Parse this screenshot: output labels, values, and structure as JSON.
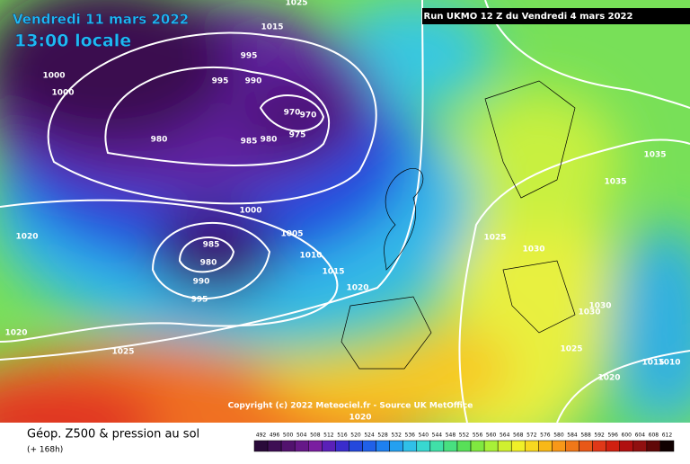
{
  "header": {
    "title": "Vendredi 11 mars 2022",
    "subtitle": "13:00 locale",
    "run": "Run UKMO 12 Z du Vendredi 4 mars 2022"
  },
  "copyright": "Copyright (c) 2022 Meteociel.fr - Source UK MetOffice",
  "footer": {
    "title": "Géop. Z500 & pression au sol",
    "lead": "(+ 168h)"
  },
  "isobar_labels": [
    "1025",
    "1015",
    "995",
    "995",
    "990",
    "1000",
    "1000",
    "970",
    "970",
    "980",
    "985",
    "980",
    "975",
    "1000",
    "985",
    "980",
    "990",
    "995",
    "1005",
    "1010",
    "1015",
    "1020",
    "1020",
    "1020",
    "1025",
    "1025",
    "1030",
    "1035",
    "1035",
    "1030",
    "1030",
    "1025",
    "1015",
    "1010",
    "1020",
    "1020"
  ],
  "legend": {
    "labels": [
      "492",
      "496",
      "500",
      "504",
      "508",
      "512",
      "516",
      "520",
      "524",
      "528",
      "532",
      "536",
      "540",
      "544",
      "548",
      "552",
      "556",
      "560",
      "564",
      "568",
      "572",
      "576",
      "580",
      "584",
      "588",
      "592",
      "596",
      "600",
      "604",
      "608",
      "612"
    ],
    "colors": [
      "#2a0a3a",
      "#3e0e54",
      "#52126e",
      "#661888",
      "#7a1ea0",
      "#5a20b8",
      "#3a2ccc",
      "#2448dc",
      "#2060e8",
      "#1e80f0",
      "#24a0f0",
      "#30c0e8",
      "#38d8d0",
      "#40e0a8",
      "#48e080",
      "#58e058",
      "#80e840",
      "#a8f038",
      "#d0f030",
      "#f0f028",
      "#f8d820",
      "#f8b818",
      "#f89818",
      "#f07818",
      "#e85818",
      "#e03818",
      "#d02010",
      "#b01010",
      "#901010",
      "#600808",
      "#100000"
    ]
  }
}
